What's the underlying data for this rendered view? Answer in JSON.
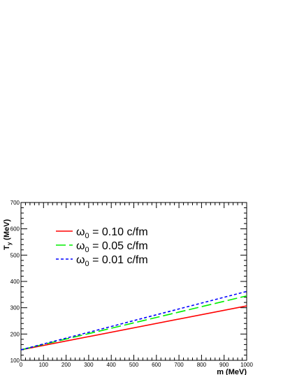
{
  "chart_data": {
    "type": "line",
    "title": "",
    "xlabel": "m (MeV)",
    "ylabel_main": "T",
    "ylabel_sub": "y",
    "ylabel_unit": "(MeV)",
    "xlim": [
      0,
      1000
    ],
    "ylim": [
      100,
      700
    ],
    "grid": false,
    "legend_position": "top-left",
    "x_ticks": [
      0,
      100,
      200,
      300,
      400,
      500,
      600,
      700,
      800,
      900,
      1000
    ],
    "x_tick_labels": [
      "0",
      "100",
      "200",
      "300",
      "400",
      "500",
      "600",
      "700",
      "800",
      "900",
      "1000"
    ],
    "y_ticks": [
      100,
      200,
      300,
      400,
      500,
      600,
      700
    ],
    "y_tick_labels": [
      "100",
      "200",
      "300",
      "400",
      "500",
      "600",
      "700"
    ],
    "series": [
      {
        "name_symbol": "ω",
        "name_sub": "0",
        "name_rest": " = 0.10 c/fm",
        "color": "#ff0000",
        "dash": "solid",
        "x": [
          0,
          1000
        ],
        "y": [
          140,
          307
        ]
      },
      {
        "name_symbol": "ω",
        "name_sub": "0",
        "name_rest": " = 0.05 c/fm",
        "color": "#00ee00",
        "dash": "long-dash",
        "x": [
          0,
          1000
        ],
        "y": [
          140,
          345
        ]
      },
      {
        "name_symbol": "ω",
        "name_sub": "0",
        "name_rest": " = 0.01 c/fm",
        "color": "#0000ff",
        "dash": "short-dash",
        "x": [
          0,
          1000
        ],
        "y": [
          140,
          362
        ]
      }
    ]
  }
}
